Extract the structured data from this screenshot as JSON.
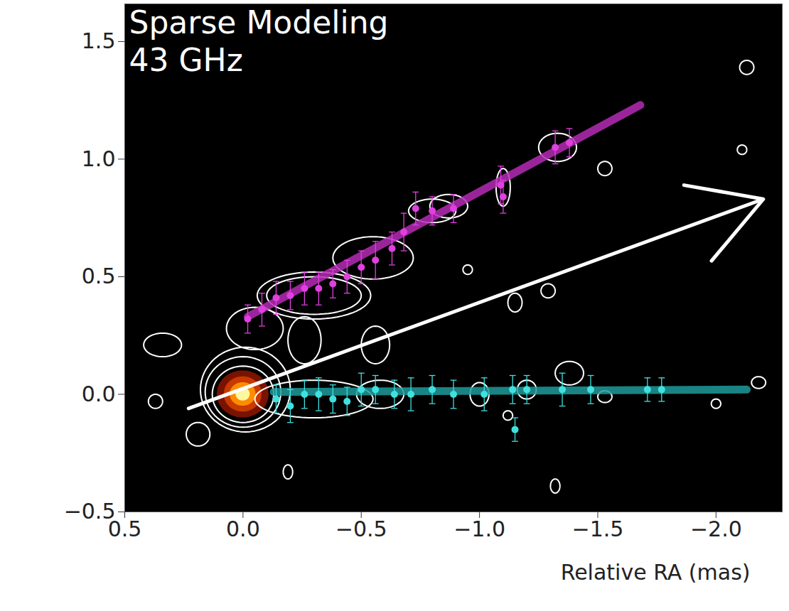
{
  "chart_data": {
    "type": "scatter",
    "title": "Sparse Modeling",
    "subtitle": "43 GHz",
    "x_label": "Relative RA (mas)",
    "xlim": [
      0.5,
      -2.28
    ],
    "ylim": [
      -0.5,
      1.66
    ],
    "xticks": [
      {
        "value": 0.5,
        "label": "0.5"
      },
      {
        "value": 0,
        "label": "0.0"
      },
      {
        "value": -0.5,
        "label": "−0.5"
      },
      {
        "value": -1,
        "label": "−1.0"
      },
      {
        "value": -1.5,
        "label": "−1.5"
      },
      {
        "value": -2,
        "label": "−2.0"
      }
    ],
    "yticks": [
      {
        "value": -0.5,
        "label": "−0.5"
      },
      {
        "value": 0,
        "label": "0.0"
      },
      {
        "value": 0.5,
        "label": "0.5"
      },
      {
        "value": 1,
        "label": "1.0"
      },
      {
        "value": 1.5,
        "label": "1.5"
      }
    ],
    "series": [
      {
        "color": "#e040e0",
        "marker": "circle",
        "x": [
          -0.02,
          -0.08,
          -0.14,
          -0.2,
          -0.26,
          -0.32,
          -0.38,
          -0.44,
          -0.5,
          -0.56,
          -0.63,
          -0.68,
          -0.73,
          -0.8,
          -0.89,
          -1.09,
          -1.1,
          -1.32,
          -1.38
        ],
        "values": [
          0.32,
          0.36,
          0.41,
          0.42,
          0.45,
          0.45,
          0.47,
          0.5,
          0.54,
          0.57,
          0.62,
          0.69,
          0.79,
          0.78,
          0.79,
          0.89,
          0.84,
          1.05,
          1.07
        ],
        "yerr": [
          0.06,
          0.07,
          0.07,
          0.06,
          0.07,
          0.07,
          0.06,
          0.07,
          0.07,
          0.08,
          0.07,
          0.08,
          0.07,
          0.06,
          0.06,
          0.08,
          0.07,
          0.07,
          0.06
        ],
        "fit_x": [
          -0.02,
          -1.68
        ],
        "fit_y": [
          0.33,
          1.23
        ],
        "fit_color": "#b52cb5"
      },
      {
        "color": "#40e0e0",
        "marker": "circle",
        "x": [
          -0.14,
          -0.2,
          -0.26,
          -0.32,
          -0.38,
          -0.44,
          -0.5,
          -0.56,
          -0.64,
          -0.71,
          -0.8,
          -0.89,
          -1.02,
          -1.14,
          -1.15,
          -1.2,
          -1.35,
          -1.47,
          -1.71,
          -1.77
        ],
        "values": [
          -0.02,
          -0.05,
          0,
          0,
          -0.02,
          -0.03,
          0.02,
          0.02,
          0,
          0,
          0.02,
          0,
          0,
          0.02,
          -0.15,
          0.02,
          0.02,
          0.02,
          0.02,
          0.02
        ],
        "yerr": [
          0.06,
          0.07,
          0.06,
          0.07,
          0.06,
          0.06,
          0.07,
          0.06,
          0.06,
          0.07,
          0.06,
          0.06,
          0.07,
          0.06,
          0.05,
          0.06,
          0.07,
          0.06,
          0.05,
          0.05
        ],
        "fit_x": [
          -0.13,
          -2.13
        ],
        "fit_y": [
          0.01,
          0.02
        ],
        "fit_color": "#1e9a9a"
      }
    ],
    "arrow": {
      "x1": 0.23,
      "y1": -0.06,
      "x2": -2.2,
      "y2": 0.83,
      "color": "#ffffff"
    },
    "core_levels": [
      {
        "x": 0,
        "y": 0,
        "rx": 0.11,
        "ry": 0.1,
        "color": "#7a1200"
      },
      {
        "x": 0,
        "y": 0,
        "rx": 0.08,
        "ry": 0.075,
        "color": "#c83a00"
      },
      {
        "x": 0,
        "y": 0,
        "rx": 0.055,
        "ry": 0.05,
        "color": "#ff8c00"
      },
      {
        "x": 0,
        "y": 0,
        "rx": 0.03,
        "ry": 0.028,
        "color": "#fff7a0"
      }
    ],
    "contours": [
      {
        "x": 0,
        "y": 0,
        "rx": 0.13,
        "ry": 0.12
      },
      {
        "x": 0,
        "y": 0.01,
        "rx": 0.16,
        "ry": 0.15
      },
      {
        "x": -0.01,
        "y": 0.02,
        "rx": 0.19,
        "ry": 0.18
      },
      {
        "x": -0.05,
        "y": 0.28,
        "rx": 0.12,
        "ry": 0.09
      },
      {
        "x": -0.3,
        "y": 0.42,
        "rx": 0.2,
        "ry": 0.08
      },
      {
        "x": -0.3,
        "y": 0.42,
        "rx": 0.24,
        "ry": 0.1
      },
      {
        "x": -0.55,
        "y": 0.58,
        "rx": 0.17,
        "ry": 0.09
      },
      {
        "x": -0.8,
        "y": 0.78,
        "rx": 0.1,
        "ry": 0.05
      },
      {
        "x": -0.3,
        "y": -0.02,
        "rx": 0.25,
        "ry": 0.08
      },
      {
        "x": 0.34,
        "y": 0.21,
        "rx": 0.08,
        "ry": 0.05
      },
      {
        "x": 0.37,
        "y": -0.03,
        "rx": 0.03,
        "ry": 0.03
      },
      {
        "x": 0.19,
        "y": -0.17,
        "rx": 0.05,
        "ry": 0.05
      },
      {
        "x": -0.26,
        "y": 0.23,
        "rx": 0.07,
        "ry": 0.1
      },
      {
        "x": -0.56,
        "y": 0.21,
        "rx": 0.06,
        "ry": 0.08
      },
      {
        "x": -0.58,
        "y": 0,
        "rx": 0.1,
        "ry": 0.06
      },
      {
        "x": -1.0,
        "y": 0,
        "rx": 0.04,
        "ry": 0.05
      },
      {
        "x": -1.2,
        "y": 0.02,
        "rx": 0.04,
        "ry": 0.04
      },
      {
        "x": -1.38,
        "y": 0.09,
        "rx": 0.06,
        "ry": 0.05
      },
      {
        "x": -1.53,
        "y": -0.01,
        "rx": 0.03,
        "ry": 0.025
      },
      {
        "x": -1.1,
        "y": 0.88,
        "rx": 0.03,
        "ry": 0.08
      },
      {
        "x": -1.33,
        "y": 1.05,
        "rx": 0.08,
        "ry": 0.06
      },
      {
        "x": -0.87,
        "y": 0.8,
        "rx": 0.08,
        "ry": 0.05
      },
      {
        "x": -0.19,
        "y": -0.33,
        "rx": 0.02,
        "ry": 0.03
      },
      {
        "x": -1.32,
        "y": -0.39,
        "rx": 0.02,
        "ry": 0.03
      },
      {
        "x": -2.13,
        "y": 1.39,
        "rx": 0.03,
        "ry": 0.03
      },
      {
        "x": -2.11,
        "y": 1.04,
        "rx": 0.02,
        "ry": 0.02
      },
      {
        "x": -1.53,
        "y": 0.96,
        "rx": 0.03,
        "ry": 0.03
      },
      {
        "x": -2.18,
        "y": 0.05,
        "rx": 0.03,
        "ry": 0.025
      },
      {
        "x": -2.0,
        "y": -0.04,
        "rx": 0.02,
        "ry": 0.02
      },
      {
        "x": -1.15,
        "y": 0.39,
        "rx": 0.03,
        "ry": 0.04
      },
      {
        "x": -1.29,
        "y": 0.44,
        "rx": 0.03,
        "ry": 0.03
      },
      {
        "x": -0.95,
        "y": 0.53,
        "rx": 0.02,
        "ry": 0.02
      },
      {
        "x": -1.12,
        "y": -0.09,
        "rx": 0.02,
        "ry": 0.02
      }
    ]
  }
}
